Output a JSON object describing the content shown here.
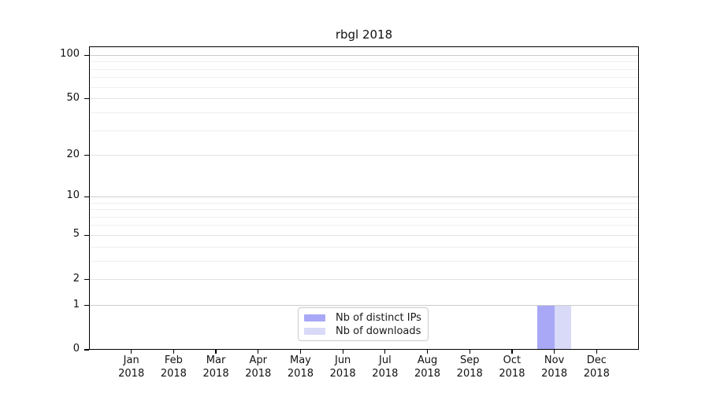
{
  "title": "rbgl 2018",
  "chart_data": {
    "type": "bar",
    "title": "rbgl 2018",
    "x": {
      "categories": [
        "Jan",
        "Feb",
        "Mar",
        "Apr",
        "May",
        "Jun",
        "Jul",
        "Aug",
        "Sep",
        "Oct",
        "Nov",
        "Dec"
      ],
      "sublabel": "2018"
    },
    "y": {
      "scale": "log1p",
      "lim": [
        0,
        117
      ],
      "labeled_ticks": [
        0,
        1,
        2,
        5,
        10,
        20,
        50,
        100
      ],
      "decade_gridlines": [
        1,
        10,
        100
      ],
      "mid_gridlines": [
        2,
        5,
        20,
        50
      ],
      "minor_gridlines": [
        3,
        4,
        6,
        7,
        8,
        9,
        30,
        40,
        60,
        70,
        80,
        90
      ]
    },
    "series": [
      {
        "name": "Nb of distinct IPs",
        "color": "#a8a8f6",
        "values": [
          0,
          0,
          0,
          0,
          0,
          0,
          0,
          0,
          0,
          0,
          1,
          0
        ]
      },
      {
        "name": "Nb of downloads",
        "color": "#d9d9f8",
        "values": [
          0,
          0,
          0,
          0,
          0,
          0,
          0,
          0,
          0,
          0,
          1,
          0
        ]
      }
    ],
    "legend_position": "lower center inside",
    "grid": "horizontal",
    "colors": {
      "grid_decade": "#cdcdcd",
      "grid_mid": "#e2e2e2",
      "grid_minor": "#efefef",
      "spine": "#000000",
      "text": "#111111"
    }
  }
}
